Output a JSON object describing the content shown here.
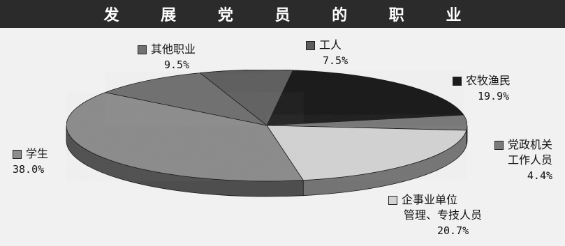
{
  "chart_data": {
    "type": "pie",
    "title": "发 展 党 员 的 职 业",
    "slices": [
      {
        "label": "工人",
        "value": 7.5,
        "pct": "7.5%",
        "color": "#5c5c5c"
      },
      {
        "label": "农牧渔民",
        "value": 19.9,
        "pct": "19.9%",
        "color": "#1c1c1c"
      },
      {
        "label": "党政机关工作人员",
        "label_lines": [
          "党政机关",
          "工作人员"
        ],
        "value": 4.4,
        "pct": "4.4%",
        "color": "#7a7a7a"
      },
      {
        "label": "企事业单位管理、专技人员",
        "label_lines": [
          "企事业单位",
          "管理、专技人员"
        ],
        "value": 20.7,
        "pct": "20.7%",
        "color": "#d3d3d3"
      },
      {
        "label": "学生",
        "value": 38.0,
        "pct": "38.0%",
        "color": "#8d8d8d"
      },
      {
        "label": "其他职业",
        "value": 9.5,
        "pct": "9.5%",
        "color": "#727272"
      }
    ],
    "legend": "labels-around-pie"
  }
}
